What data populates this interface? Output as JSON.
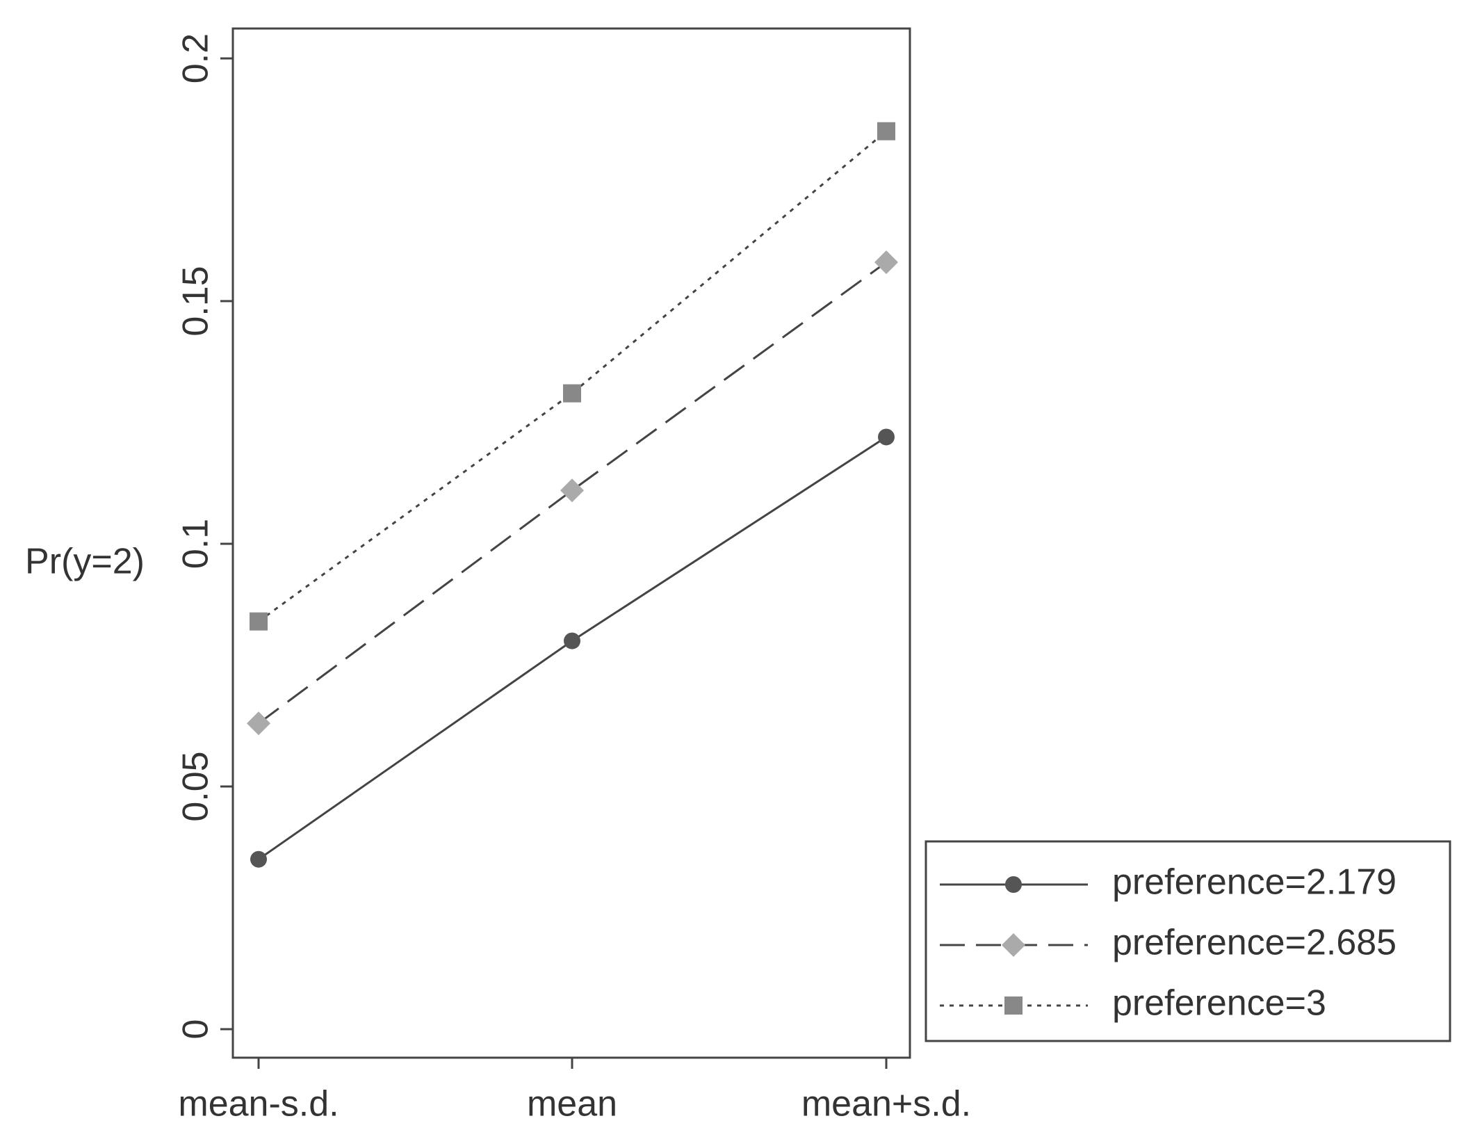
{
  "chart_data": {
    "type": "line",
    "y_label": "Pr(y=2)",
    "categories": [
      "mean-s.d.",
      "mean",
      "mean+s.d."
    ],
    "ylim": [
      0,
      0.2
    ],
    "yticks": [
      0,
      0.05,
      0.1,
      0.15,
      0.2
    ],
    "legend_position": "lower right outside",
    "series": [
      {
        "name": "preference=2.179",
        "color": "#555555",
        "dash": "solid",
        "marker": "circle",
        "values": [
          0.035,
          0.08,
          0.122
        ]
      },
      {
        "name": "preference=2.685",
        "color": "#aaaaaa",
        "dash": "dashed",
        "marker": "diamond",
        "values": [
          0.063,
          0.111,
          0.158
        ]
      },
      {
        "name": "preference=3",
        "color": "#888888",
        "dash": "dotted",
        "marker": "square",
        "values": [
          0.084,
          0.131,
          0.185
        ]
      }
    ]
  }
}
